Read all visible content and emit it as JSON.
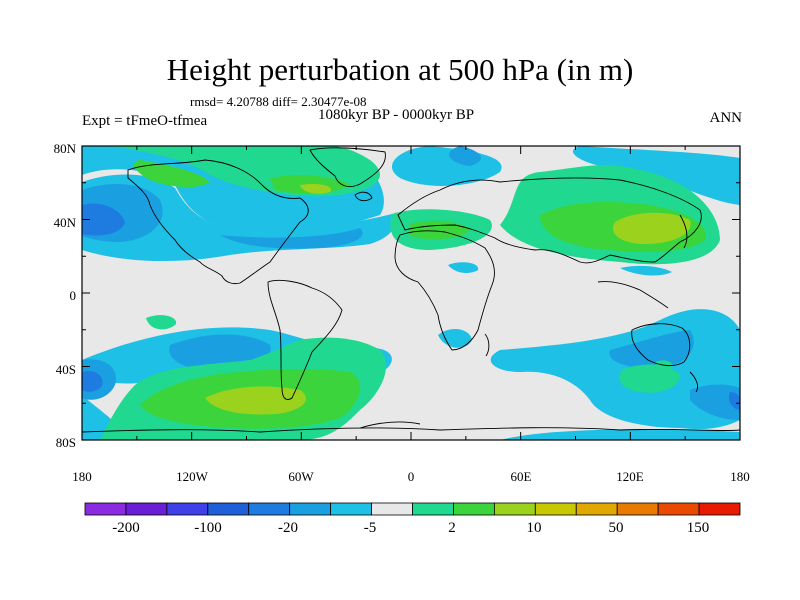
{
  "title": "Height perturbation at 500 hPa (in m)",
  "stats": "rmsd= 4.20788 diff= 2.30477e-08",
  "period": "1080kyr BP - 0000kyr BP",
  "experiment": "Expt = tFmeO-tfmea",
  "season": "ANN",
  "lat_ticks": [
    "80N",
    "40N",
    "0",
    "40S",
    "80S"
  ],
  "lon_ticks": [
    "180",
    "120W",
    "60W",
    "0",
    "60E",
    "120E",
    "180"
  ],
  "colorbar": {
    "colors": [
      "#8a2be2",
      "#6a1fd6",
      "#4040e8",
      "#1f5fd8",
      "#1e7be0",
      "#1aa0e0",
      "#1ec0e6",
      "#e8e8e8",
      "#20d890",
      "#3cd43c",
      "#9ad21e",
      "#c8c800",
      "#e0a800",
      "#e87a00",
      "#e84a00",
      "#e81a00"
    ],
    "labels": [
      "-200",
      "-100",
      "-20",
      "-5",
      "2",
      "10",
      "50",
      "150"
    ]
  },
  "colors": {
    "neutral": "#e8e8e8",
    "light_blue": "#1ec0e6",
    "blue": "#1aa0e0",
    "dark_blue": "#1e7be0",
    "teal_green": "#20d890",
    "green": "#3cd43c",
    "yellow_green": "#9ad21e"
  }
}
